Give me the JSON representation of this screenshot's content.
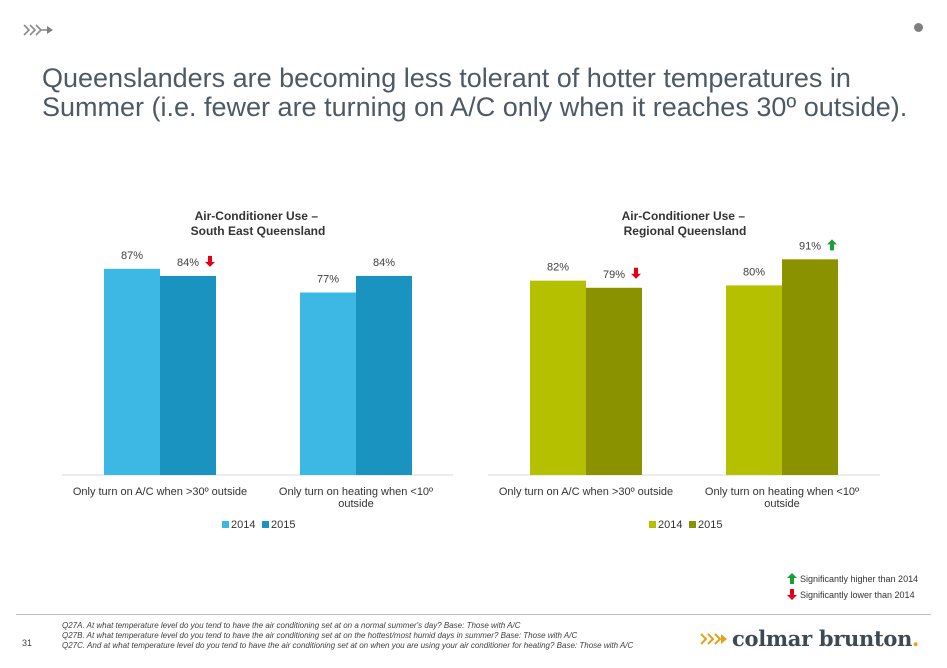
{
  "header": {
    "logo_icon": "chevrons-arrow-icon",
    "menu_icon": "dot-icon",
    "headline": "Queenslanders are becoming less tolerant of hotter temperatures in Summer (i.e. fewer are turning on A/C only when it reaches 30º outside)."
  },
  "chart_data": [
    {
      "type": "bar",
      "title": "Air-Conditioner Use –\nSouth East Queensland",
      "categories": [
        "Only turn on A/C when >30º outside",
        "Only turn on heating when <10º\noutside"
      ],
      "series": [
        {
          "name": "2014",
          "values": [
            87,
            77
          ],
          "labels": [
            "87%",
            "77%"
          ],
          "color": "#3db7e4",
          "markers": [
            null,
            null
          ]
        },
        {
          "name": "2015",
          "values": [
            84,
            84
          ],
          "labels": [
            "84%",
            "84%"
          ],
          "color": "#1b93c0",
          "markers": [
            "down",
            null
          ]
        }
      ],
      "ylim": [
        0,
        100
      ],
      "legend": "bottom"
    },
    {
      "type": "bar",
      "title": "Air-Conditioner  Use –\nRegional Queensland",
      "categories": [
        "Only turn on A/C when >30º outside",
        "Only turn on heating when <10º\noutside"
      ],
      "series": [
        {
          "name": "2014",
          "values": [
            82,
            80
          ],
          "labels": [
            "82%",
            "80%"
          ],
          "color": "#b5c100",
          "markers": [
            null,
            null
          ]
        },
        {
          "name": "2015",
          "values": [
            79,
            91
          ],
          "labels": [
            "79%",
            "91%"
          ],
          "color": "#8a9200",
          "markers": [
            "down",
            "up"
          ]
        }
      ],
      "ylim": [
        0,
        100
      ],
      "legend": "bottom"
    }
  ],
  "significance_key": {
    "up_label": "Significantly higher than 2014",
    "down_label": "Significantly lower than 2014",
    "up_color": "#1a9e3a",
    "down_color": "#e3001b"
  },
  "footer": {
    "page_number": "31",
    "notes": [
      "Q27A. At what temperature level do you tend to have the air conditioning set at on a normal summer's day? Base: Those with A/C",
      "Q27B. At what temperature level do you tend to have the air conditioning set at on the hottest/most humid days in summer? Base: Those with A/C",
      "Q27C. And at what temperature level do you tend to have the air conditioning set at on when you are using your air conditioner for heating? Base: Those with A/C"
    ],
    "brand_name": "colmar brunton",
    "brand_dot": ".",
    "brand_color": "#e2a31b"
  }
}
